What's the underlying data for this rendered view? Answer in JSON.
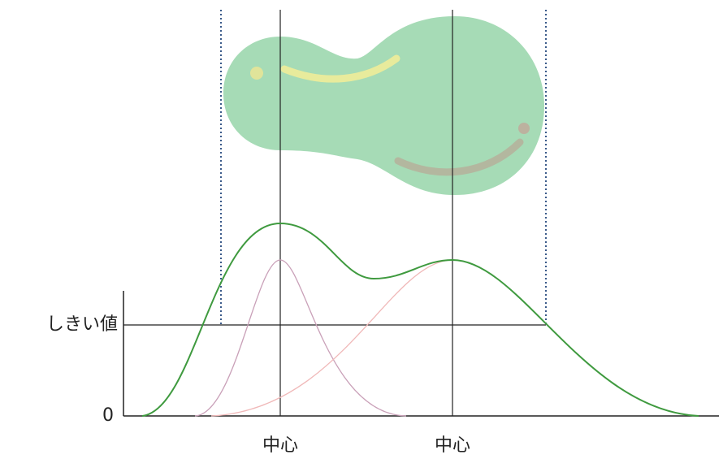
{
  "y_axis": {
    "threshold_label": "しきい値",
    "zero_label": "0"
  },
  "centers": [
    {
      "label": "中心"
    },
    {
      "label": "中心"
    }
  ]
}
